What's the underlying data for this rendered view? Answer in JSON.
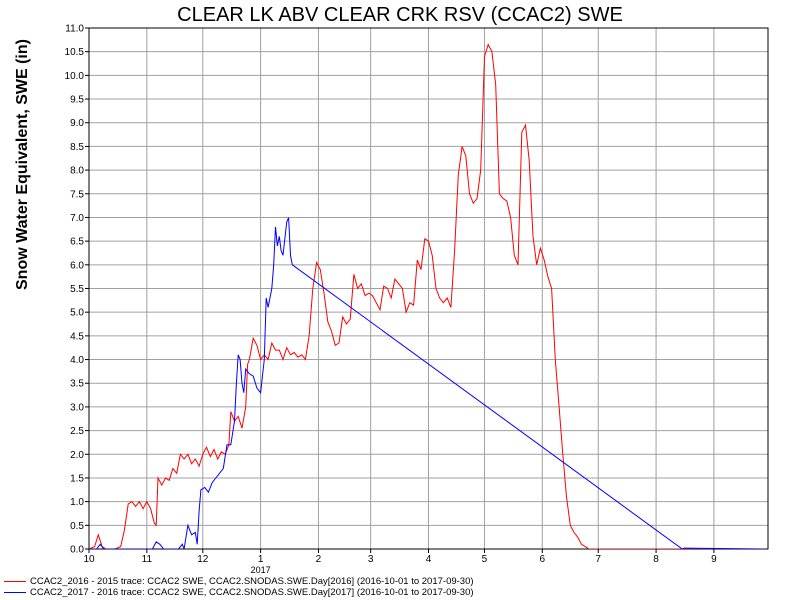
{
  "chart_data": {
    "type": "line",
    "title": "CLEAR LK ABV CLEAR CRK RSV (CCAC2) SWE",
    "ylabel": "Snow Water Equivalent, SWE (in)",
    "xlabel": "",
    "ylim": [
      0,
      11
    ],
    "yticks": [
      "0.0",
      "0.5",
      "1.0",
      "1.5",
      "2.0",
      "2.5",
      "3.0",
      "3.5",
      "4.0",
      "4.5",
      "5.0",
      "5.5",
      "6.0",
      "6.5",
      "7.0",
      "7.5",
      "8.0",
      "8.5",
      "9.0",
      "9.5",
      "10.0",
      "10.5",
      "11.0"
    ],
    "xlim": [
      "2016-10-01",
      "2017-09-30"
    ],
    "xticks": [
      {
        "date": "2016-10-01",
        "label": "10"
      },
      {
        "date": "2016-11-01",
        "label": "11"
      },
      {
        "date": "2016-12-01",
        "label": "12"
      },
      {
        "date": "2017-01-01",
        "label": "1"
      },
      {
        "date": "2017-02-01",
        "label": "2"
      },
      {
        "date": "2017-03-01",
        "label": "3"
      },
      {
        "date": "2017-04-01",
        "label": "4"
      },
      {
        "date": "2017-05-01",
        "label": "5"
      },
      {
        "date": "2017-06-01",
        "label": "6"
      },
      {
        "date": "2017-07-01",
        "label": "7"
      },
      {
        "date": "2017-08-01",
        "label": "8"
      },
      {
        "date": "2017-09-01",
        "label": "9"
      }
    ],
    "year_label": {
      "date": "2017-01-01",
      "label": "2017"
    },
    "grid": true,
    "legend_position": "bottom",
    "series": [
      {
        "name": "CCAC2_2016 - 2015 trace: CCAC2 SWE, CCAC2.SNODAS.SWE.Day[2016] (2016-10-01 to 2017-09-30)",
        "color": "#ff0000",
        "points": [
          [
            "2016-10-01",
            0.0
          ],
          [
            "2016-10-04",
            0.05
          ],
          [
            "2016-10-06",
            0.3
          ],
          [
            "2016-10-08",
            0.05
          ],
          [
            "2016-10-10",
            0.0
          ],
          [
            "2016-10-15",
            0.0
          ],
          [
            "2016-10-18",
            0.05
          ],
          [
            "2016-10-20",
            0.4
          ],
          [
            "2016-10-22",
            0.95
          ],
          [
            "2016-10-24",
            1.0
          ],
          [
            "2016-10-26",
            0.9
          ],
          [
            "2016-10-28",
            1.0
          ],
          [
            "2016-10-30",
            0.85
          ],
          [
            "2016-11-01",
            1.0
          ],
          [
            "2016-11-03",
            0.85
          ],
          [
            "2016-11-05",
            0.55
          ],
          [
            "2016-11-06",
            0.5
          ],
          [
            "2016-11-07",
            1.5
          ],
          [
            "2016-11-09",
            1.35
          ],
          [
            "2016-11-11",
            1.5
          ],
          [
            "2016-11-13",
            1.45
          ],
          [
            "2016-11-15",
            1.7
          ],
          [
            "2016-11-17",
            1.6
          ],
          [
            "2016-11-19",
            2.0
          ],
          [
            "2016-11-21",
            1.9
          ],
          [
            "2016-11-23",
            2.0
          ],
          [
            "2016-11-25",
            1.8
          ],
          [
            "2016-11-27",
            1.9
          ],
          [
            "2016-11-29",
            1.75
          ],
          [
            "2016-12-01",
            2.0
          ],
          [
            "2016-12-03",
            2.15
          ],
          [
            "2016-12-05",
            1.95
          ],
          [
            "2016-12-07",
            2.1
          ],
          [
            "2016-12-09",
            1.9
          ],
          [
            "2016-12-11",
            2.05
          ],
          [
            "2016-12-13",
            2.0
          ],
          [
            "2016-12-15",
            2.2
          ],
          [
            "2016-12-16",
            2.9
          ],
          [
            "2016-12-18",
            2.7
          ],
          [
            "2016-12-20",
            2.8
          ],
          [
            "2016-12-22",
            2.55
          ],
          [
            "2016-12-24",
            3.0
          ],
          [
            "2016-12-25",
            3.9
          ],
          [
            "2016-12-26",
            4.0
          ],
          [
            "2016-12-28",
            4.45
          ],
          [
            "2016-12-30",
            4.3
          ],
          [
            "2017-01-01",
            4.0
          ],
          [
            "2017-01-03",
            4.1
          ],
          [
            "2017-01-05",
            4.0
          ],
          [
            "2017-01-07",
            4.35
          ],
          [
            "2017-01-09",
            4.2
          ],
          [
            "2017-01-11",
            4.2
          ],
          [
            "2017-01-13",
            4.0
          ],
          [
            "2017-01-15",
            4.25
          ],
          [
            "2017-01-17",
            4.1
          ],
          [
            "2017-01-19",
            4.15
          ],
          [
            "2017-01-21",
            4.05
          ],
          [
            "2017-01-23",
            4.1
          ],
          [
            "2017-01-25",
            4.0
          ],
          [
            "2017-01-27",
            4.5
          ],
          [
            "2017-01-29",
            5.5
          ],
          [
            "2017-01-31",
            6.05
          ],
          [
            "2017-02-02",
            5.9
          ],
          [
            "2017-02-04",
            5.4
          ],
          [
            "2017-02-06",
            4.8
          ],
          [
            "2017-02-08",
            4.6
          ],
          [
            "2017-02-10",
            4.3
          ],
          [
            "2017-02-12",
            4.35
          ],
          [
            "2017-02-14",
            4.9
          ],
          [
            "2017-02-16",
            4.75
          ],
          [
            "2017-02-18",
            4.85
          ],
          [
            "2017-02-20",
            5.8
          ],
          [
            "2017-02-22",
            5.5
          ],
          [
            "2017-02-24",
            5.6
          ],
          [
            "2017-02-26",
            5.35
          ],
          [
            "2017-02-28",
            5.4
          ],
          [
            "2017-03-02",
            5.35
          ],
          [
            "2017-03-04",
            5.2
          ],
          [
            "2017-03-06",
            5.05
          ],
          [
            "2017-03-08",
            5.55
          ],
          [
            "2017-03-10",
            5.5
          ],
          [
            "2017-03-12",
            5.3
          ],
          [
            "2017-03-14",
            5.7
          ],
          [
            "2017-03-16",
            5.6
          ],
          [
            "2017-03-18",
            5.5
          ],
          [
            "2017-03-20",
            5.0
          ],
          [
            "2017-03-22",
            5.2
          ],
          [
            "2017-03-24",
            5.15
          ],
          [
            "2017-03-26",
            6.1
          ],
          [
            "2017-03-28",
            5.9
          ],
          [
            "2017-03-30",
            6.55
          ],
          [
            "2017-04-01",
            6.5
          ],
          [
            "2017-04-03",
            6.2
          ],
          [
            "2017-04-05",
            5.5
          ],
          [
            "2017-04-07",
            5.3
          ],
          [
            "2017-04-09",
            5.2
          ],
          [
            "2017-04-11",
            5.3
          ],
          [
            "2017-04-13",
            5.1
          ],
          [
            "2017-04-15",
            6.3
          ],
          [
            "2017-04-17",
            7.9
          ],
          [
            "2017-04-19",
            8.5
          ],
          [
            "2017-04-21",
            8.3
          ],
          [
            "2017-04-23",
            7.5
          ],
          [
            "2017-04-25",
            7.3
          ],
          [
            "2017-04-27",
            7.4
          ],
          [
            "2017-04-29",
            8.0
          ],
          [
            "2017-05-01",
            10.4
          ],
          [
            "2017-05-03",
            10.65
          ],
          [
            "2017-05-05",
            10.5
          ],
          [
            "2017-05-07",
            9.8
          ],
          [
            "2017-05-09",
            7.5
          ],
          [
            "2017-05-11",
            7.4
          ],
          [
            "2017-05-13",
            7.35
          ],
          [
            "2017-05-15",
            7.0
          ],
          [
            "2017-05-17",
            6.2
          ],
          [
            "2017-05-19",
            6.0
          ],
          [
            "2017-05-21",
            8.8
          ],
          [
            "2017-05-23",
            8.95
          ],
          [
            "2017-05-25",
            8.2
          ],
          [
            "2017-05-27",
            6.6
          ],
          [
            "2017-05-29",
            6.0
          ],
          [
            "2017-05-31",
            6.35
          ],
          [
            "2017-06-02",
            6.1
          ],
          [
            "2017-06-04",
            5.75
          ],
          [
            "2017-06-06",
            5.5
          ],
          [
            "2017-06-08",
            4.0
          ],
          [
            "2017-06-10",
            3.0
          ],
          [
            "2017-06-12",
            2.0
          ],
          [
            "2017-06-14",
            1.1
          ],
          [
            "2017-06-16",
            0.5
          ],
          [
            "2017-06-18",
            0.35
          ],
          [
            "2017-06-20",
            0.25
          ],
          [
            "2017-06-22",
            0.1
          ],
          [
            "2017-06-24",
            0.05
          ],
          [
            "2017-06-26",
            0.0
          ],
          [
            "2017-07-15",
            0.0
          ],
          [
            "2017-08-15",
            0.0
          ],
          [
            "2017-09-28",
            0.0
          ]
        ]
      },
      {
        "name": "CCAC2_2017 - 2016 trace: CCAC2 SWE, CCAC2.SNODAS.SWE.Day[2017] (2016-10-01 to 2017-09-30)",
        "color": "#0000ff",
        "points": [
          [
            "2016-10-01",
            0.0
          ],
          [
            "2016-10-05",
            0.0
          ],
          [
            "2016-10-07",
            0.1
          ],
          [
            "2016-10-09",
            0.0
          ],
          [
            "2016-11-04",
            0.0
          ],
          [
            "2016-11-06",
            0.15
          ],
          [
            "2016-11-08",
            0.1
          ],
          [
            "2016-11-10",
            0.0
          ],
          [
            "2016-11-18",
            0.0
          ],
          [
            "2016-11-20",
            0.1
          ],
          [
            "2016-11-21",
            0.0
          ],
          [
            "2016-11-23",
            0.5
          ],
          [
            "2016-11-25",
            0.3
          ],
          [
            "2016-11-27",
            0.35
          ],
          [
            "2016-11-28",
            0.1
          ],
          [
            "2016-11-29",
            0.8
          ],
          [
            "2016-11-30",
            1.25
          ],
          [
            "2016-12-02",
            1.3
          ],
          [
            "2016-12-04",
            1.2
          ],
          [
            "2016-12-06",
            1.4
          ],
          [
            "2016-12-08",
            1.5
          ],
          [
            "2016-12-10",
            1.6
          ],
          [
            "2016-12-12",
            1.7
          ],
          [
            "2016-12-14",
            2.2
          ],
          [
            "2016-12-16",
            2.2
          ],
          [
            "2016-12-18",
            2.7
          ],
          [
            "2016-12-19",
            3.5
          ],
          [
            "2016-12-20",
            4.1
          ],
          [
            "2016-12-21",
            4.0
          ],
          [
            "2016-12-22",
            3.5
          ],
          [
            "2016-12-23",
            3.3
          ],
          [
            "2016-12-24",
            3.8
          ],
          [
            "2016-12-26",
            3.7
          ],
          [
            "2016-12-28",
            3.65
          ],
          [
            "2016-12-30",
            3.4
          ],
          [
            "2017-01-01",
            3.3
          ],
          [
            "2017-01-03",
            4.0
          ],
          [
            "2017-01-04",
            5.3
          ],
          [
            "2017-01-05",
            5.1
          ],
          [
            "2017-01-07",
            5.5
          ],
          [
            "2017-01-08",
            6.0
          ],
          [
            "2017-01-09",
            6.8
          ],
          [
            "2017-01-10",
            6.4
          ],
          [
            "2017-01-11",
            6.6
          ],
          [
            "2017-01-12",
            6.3
          ],
          [
            "2017-01-13",
            6.2
          ],
          [
            "2017-01-15",
            6.9
          ],
          [
            "2017-01-16",
            7.0
          ],
          [
            "2017-01-17",
            6.2
          ],
          [
            "2017-01-18",
            6.0
          ],
          [
            "2017-08-15",
            0.0
          ],
          [
            "2017-08-16",
            0.02
          ],
          [
            "2017-09-28",
            0.0
          ]
        ]
      }
    ]
  }
}
